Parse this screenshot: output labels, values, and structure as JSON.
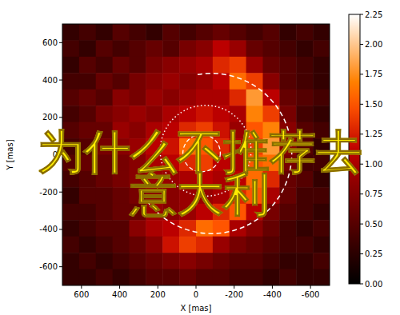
{
  "chart_data": {
    "type": "heatmap",
    "xlabel": "X [mas]",
    "ylabel": "Y [mas]",
    "xlim": [
      700,
      -700
    ],
    "ylim": [
      -700,
      700
    ],
    "xticks": [
      600,
      400,
      200,
      0,
      -200,
      -400,
      -600
    ],
    "yticks": [
      -600,
      -400,
      -200,
      0,
      200,
      400,
      600
    ],
    "grid": false,
    "annotations": [
      "为什么不推荐去",
      "意大利"
    ],
    "colorbar": {
      "range": [
        0,
        2.25
      ],
      "ticks": [
        {
          "value": 0,
          "label": "0.00"
        },
        {
          "value": 0.25,
          "label": "0.25"
        },
        {
          "value": 0.5,
          "label": "0.50"
        },
        {
          "value": 0.75,
          "label": "0.75"
        },
        {
          "value": 1,
          "label": "1.00"
        },
        {
          "value": 1.25,
          "label": "1.25"
        },
        {
          "value": 1.5,
          "label": "1.50"
        },
        {
          "value": 1.75,
          "label": "1.75"
        },
        {
          "value": 2,
          "label": "2.00"
        },
        {
          "value": 2.25,
          "label": "2.25"
        }
      ]
    },
    "cells": [
      [
        0.3,
        0.4,
        0.3,
        0.5,
        0.4,
        0.3,
        0.5,
        0.4,
        0.5,
        0.6,
        0.5,
        0.4,
        0.5,
        0.3,
        0.4,
        0.3
      ],
      [
        0.4,
        0.3,
        0.5,
        0.4,
        0.5,
        0.6,
        0.5,
        0.7,
        0.8,
        1.1,
        0.9,
        0.6,
        0.5,
        0.4,
        0.3,
        0.4
      ],
      [
        0.3,
        0.5,
        0.4,
        0.6,
        0.5,
        0.7,
        0.8,
        0.9,
        1.0,
        1.3,
        1.4,
        0.9,
        0.6,
        0.5,
        0.4,
        0.3
      ],
      [
        0.4,
        0.4,
        0.6,
        0.5,
        0.7,
        0.8,
        0.9,
        0.8,
        0.9,
        1.1,
        1.6,
        1.4,
        0.8,
        0.5,
        0.4,
        0.3
      ],
      [
        0.5,
        0.6,
        0.5,
        0.8,
        0.7,
        0.9,
        0.8,
        0.9,
        1.0,
        1.0,
        1.3,
        1.8,
        1.1,
        0.6,
        0.5,
        0.4
      ],
      [
        0.4,
        0.5,
        0.7,
        0.8,
        0.9,
        0.8,
        1.0,
        1.1,
        1.2,
        1.1,
        1.0,
        1.7,
        1.4,
        0.7,
        0.4,
        0.3
      ],
      [
        0.5,
        0.6,
        0.6,
        0.9,
        0.8,
        1.0,
        1.1,
        1.3,
        1.4,
        1.2,
        0.9,
        1.5,
        1.7,
        0.8,
        0.5,
        0.4
      ],
      [
        0.4,
        0.5,
        0.7,
        0.8,
        0.9,
        1.1,
        1.2,
        1.6,
        1.5,
        1.3,
        1.0,
        1.4,
        1.8,
        0.8,
        0.5,
        0.3
      ],
      [
        0.5,
        0.6,
        0.6,
        0.7,
        0.8,
        1.0,
        1.1,
        1.3,
        1.4,
        1.1,
        1.0,
        1.5,
        1.6,
        0.7,
        0.4,
        0.4
      ],
      [
        0.4,
        0.5,
        0.6,
        0.7,
        0.8,
        0.9,
        0.9,
        1.0,
        1.1,
        1.0,
        1.1,
        1.6,
        1.3,
        0.6,
        0.5,
        0.3
      ],
      [
        0.3,
        0.5,
        0.5,
        0.6,
        0.7,
        0.8,
        0.8,
        0.9,
        0.9,
        1.0,
        1.3,
        1.5,
        1.0,
        0.6,
        0.4,
        0.4
      ],
      [
        0.4,
        0.4,
        0.5,
        0.6,
        0.6,
        0.9,
        0.8,
        0.9,
        1.1,
        1.3,
        1.5,
        1.1,
        0.7,
        0.5,
        0.4,
        0.3
      ],
      [
        0.3,
        0.4,
        0.5,
        0.5,
        0.8,
        1.0,
        1.1,
        1.3,
        1.6,
        1.5,
        1.0,
        0.8,
        0.6,
        0.4,
        0.3,
        0.4
      ],
      [
        0.4,
        0.3,
        0.4,
        0.5,
        0.6,
        0.8,
        1.2,
        1.4,
        1.3,
        0.9,
        0.7,
        0.6,
        0.5,
        0.4,
        0.4,
        0.3
      ],
      [
        0.3,
        0.4,
        0.3,
        0.4,
        0.5,
        0.6,
        0.7,
        0.8,
        0.7,
        0.6,
        0.5,
        0.5,
        0.4,
        0.3,
        0.3,
        0.4
      ],
      [
        0.3,
        0.3,
        0.4,
        0.3,
        0.4,
        0.5,
        0.5,
        0.6,
        0.5,
        0.5,
        0.4,
        0.4,
        0.3,
        0.4,
        0.3,
        0.3
      ]
    ]
  }
}
